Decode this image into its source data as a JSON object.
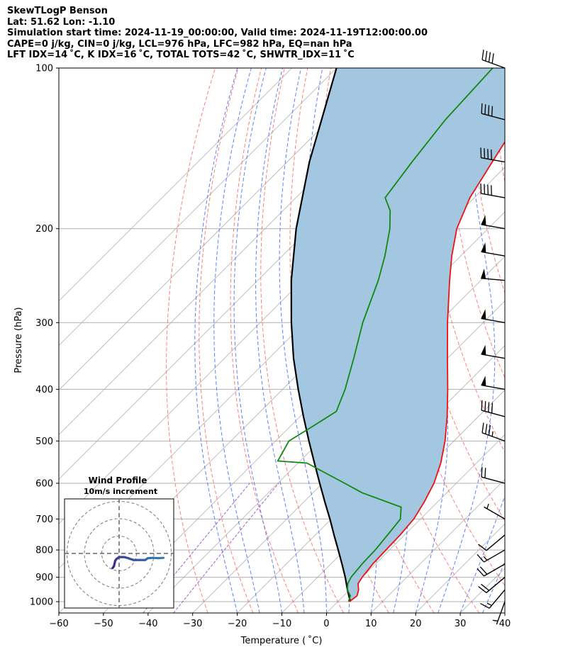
{
  "header": {
    "line1": "SkewTLogP Benson",
    "line2": "Lat: 51.62   Lon: -1.10",
    "line3": "Simulation start time: 2024-11-19_00:00:00, Valid time: 2024-11-19T12:00:00.00",
    "line4": "CAPE=0 j/kg, CIN=0 j/kg, LCL=976 hPa, LFC=982 hPa, EQ=nan hPa",
    "line5": "LFT IDX=14 ˚C, K IDX=16 ˚C, TOTAL TOTS=42 ˚C, SHWTR_IDX=11 ˚C"
  },
  "chart_data": {
    "type": "skewt-logp",
    "xlabel": "Temperature ( ˚C)",
    "ylabel": "Pressure (hPa)",
    "xlim": [
      -60,
      40
    ],
    "ylim": [
      1050,
      100
    ],
    "y_scale": "log",
    "x_ticks": [
      -60,
      -50,
      -40,
      -30,
      -20,
      -10,
      0,
      10,
      20,
      30,
      40
    ],
    "y_ticks": [
      100,
      200,
      300,
      400,
      500,
      600,
      700,
      800,
      900,
      1000
    ],
    "grid": true,
    "colors": {
      "temperature": "#ee1111",
      "dewpoint": "#118811",
      "parcel": "#000000",
      "cape_fill": "#a3c7e0",
      "dry_adiabat": "#ff6666",
      "moist_adiabat": "#4466ff",
      "mixing_ratio": "#9944bb",
      "isotherm_grid": "#b0b0b0",
      "hodograph": "#442288"
    },
    "temperature": [
      [
        1000,
        2.6
      ],
      [
        975,
        3.0
      ],
      [
        950,
        2.0
      ],
      [
        925,
        0.5
      ],
      [
        900,
        0.0
      ],
      [
        850,
        -0.6
      ],
      [
        800,
        -0.8
      ],
      [
        750,
        -1.0
      ],
      [
        700,
        -1.5
      ],
      [
        650,
        -3.0
      ],
      [
        600,
        -5.0
      ],
      [
        550,
        -8.0
      ],
      [
        500,
        -12.0
      ],
      [
        450,
        -17.0
      ],
      [
        400,
        -23.0
      ],
      [
        350,
        -30.0
      ],
      [
        300,
        -38.0
      ],
      [
        250,
        -47.0
      ],
      [
        225,
        -52.0
      ],
      [
        200,
        -57.0
      ],
      [
        175,
        -61.0
      ],
      [
        150,
        -64.0
      ],
      [
        125,
        -67.5
      ],
      [
        100,
        -72.0
      ]
    ],
    "dewpoint": [
      [
        1000,
        2.4
      ],
      [
        975,
        1.5
      ],
      [
        950,
        -0.5
      ],
      [
        925,
        -1.8
      ],
      [
        900,
        -2.5
      ],
      [
        850,
        -3.0
      ],
      [
        800,
        -3.2
      ],
      [
        750,
        -3.8
      ],
      [
        700,
        -4.5
      ],
      [
        665,
        -7.0
      ],
      [
        625,
        -19.0
      ],
      [
        600,
        -25.0
      ],
      [
        550,
        -38.0
      ],
      [
        545,
        -45.0
      ],
      [
        500,
        -47.0
      ],
      [
        470,
        -45.0
      ],
      [
        440,
        -43.0
      ],
      [
        400,
        -46.0
      ],
      [
        350,
        -51.0
      ],
      [
        300,
        -57.0
      ],
      [
        250,
        -63.0
      ],
      [
        225,
        -67.0
      ],
      [
        200,
        -72.0
      ],
      [
        185,
        -76.0
      ],
      [
        175,
        -80.0
      ],
      [
        150,
        -82.0
      ],
      [
        125,
        -84.0
      ],
      [
        100,
        -85.0
      ]
    ],
    "parcel_path": [
      [
        1000,
        2.8
      ],
      [
        950,
        -0.5
      ],
      [
        900,
        -3.8
      ],
      [
        850,
        -7.5
      ],
      [
        800,
        -11.5
      ],
      [
        750,
        -15.8
      ],
      [
        700,
        -20.3
      ],
      [
        650,
        -25.3
      ],
      [
        600,
        -30.6
      ],
      [
        550,
        -36.3
      ],
      [
        500,
        -42.5
      ],
      [
        450,
        -49.2
      ],
      [
        400,
        -56.5
      ],
      [
        350,
        -64.5
      ],
      [
        300,
        -73.0
      ],
      [
        250,
        -82.5
      ],
      [
        200,
        -93.0
      ],
      [
        150,
        -105.0
      ],
      [
        100,
        -120.0
      ]
    ],
    "wind_barbs": [
      {
        "pressure": 100,
        "speed_kt": 40,
        "direction_deg": 290
      },
      {
        "pressure": 125,
        "speed_kt": 40,
        "direction_deg": 285
      },
      {
        "pressure": 150,
        "speed_kt": 40,
        "direction_deg": 280
      },
      {
        "pressure": 175,
        "speed_kt": 40,
        "direction_deg": 280
      },
      {
        "pressure": 200,
        "speed_kt": 50,
        "direction_deg": 280
      },
      {
        "pressure": 225,
        "speed_kt": 50,
        "direction_deg": 280
      },
      {
        "pressure": 250,
        "speed_kt": 50,
        "direction_deg": 275
      },
      {
        "pressure": 300,
        "speed_kt": 50,
        "direction_deg": 280
      },
      {
        "pressure": 350,
        "speed_kt": 50,
        "direction_deg": 280
      },
      {
        "pressure": 400,
        "speed_kt": 50,
        "direction_deg": 280
      },
      {
        "pressure": 450,
        "speed_kt": 40,
        "direction_deg": 285
      },
      {
        "pressure": 500,
        "speed_kt": 35,
        "direction_deg": 290
      },
      {
        "pressure": 600,
        "speed_kt": 20,
        "direction_deg": 285
      },
      {
        "pressure": 700,
        "speed_kt": 5,
        "direction_deg": 300
      },
      {
        "pressure": 750,
        "speed_kt": 10,
        "direction_deg": 230
      },
      {
        "pressure": 800,
        "speed_kt": 15,
        "direction_deg": 240
      },
      {
        "pressure": 850,
        "speed_kt": 20,
        "direction_deg": 240
      },
      {
        "pressure": 900,
        "speed_kt": 20,
        "direction_deg": 230
      },
      {
        "pressure": 950,
        "speed_kt": 15,
        "direction_deg": 220
      },
      {
        "pressure": 1000,
        "speed_kt": 5,
        "direction_deg": 200
      }
    ],
    "hodograph": {
      "title": "Wind Profile",
      "subtitle": "10m/s increment",
      "ring_increment_ms": 10,
      "rings": 3,
      "points": [
        [
          -2.5,
          -4.0
        ],
        [
          -2.0,
          -3.5
        ],
        [
          -1.5,
          -2.0
        ],
        [
          -1.0,
          -1.5
        ],
        [
          0.0,
          -1.0
        ],
        [
          2.0,
          -1.0
        ],
        [
          3.5,
          -1.3
        ],
        [
          5.5,
          -1.8
        ],
        [
          8.0,
          -1.8
        ],
        [
          10.0,
          -1.8
        ],
        [
          11.0,
          -1.3
        ],
        [
          13.0,
          -1.2
        ],
        [
          15.0,
          -1.3
        ],
        [
          17.0,
          -1.2
        ]
      ]
    }
  }
}
